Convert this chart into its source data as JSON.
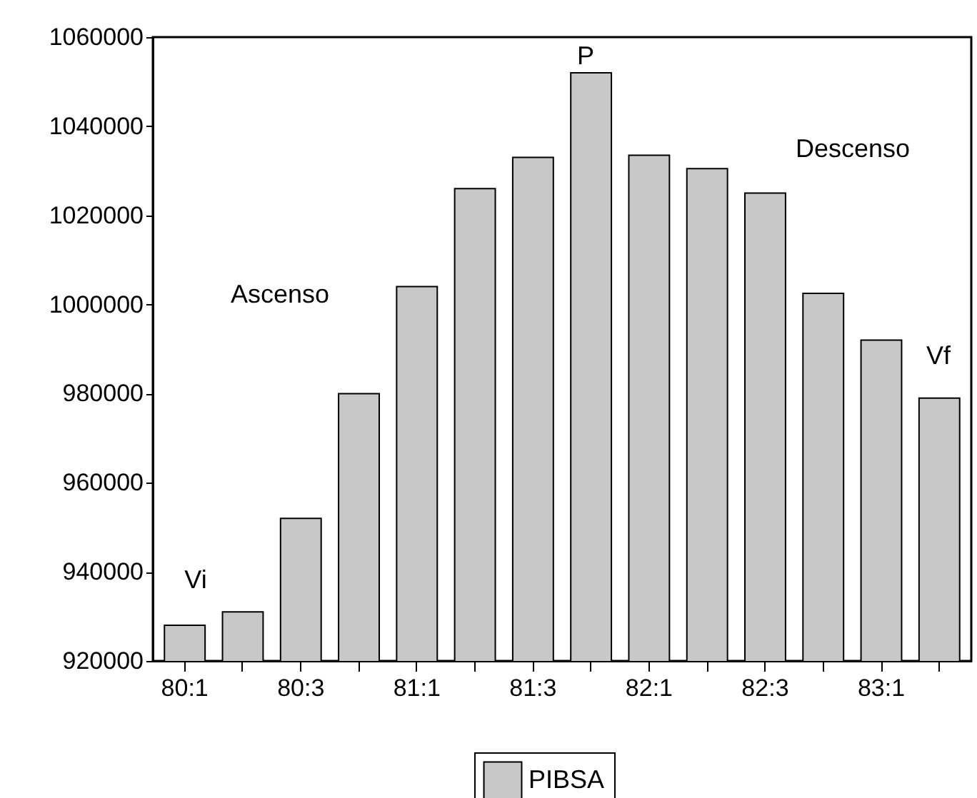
{
  "chart_data": {
    "type": "bar",
    "categories": [
      "80:1",
      null,
      "80:3",
      null,
      "81:1",
      null,
      "81:3",
      null,
      "82:1",
      null,
      "82:3",
      null,
      "83:1",
      null
    ],
    "series": [
      {
        "name": "PIBSA",
        "color": "#c8c8c8",
        "values": [
          928000,
          931000,
          952000,
          980000,
          1004000,
          1026000,
          1033000,
          1052000,
          1033500,
          1030500,
          1025000,
          1002500,
          992000,
          979000
        ]
      }
    ],
    "ylim": [
      920000,
      1060000
    ],
    "yticks": [
      920000,
      940000,
      960000,
      980000,
      1000000,
      1020000,
      1040000,
      1060000
    ],
    "annotations": [
      "Vi",
      "Ascenso",
      "P",
      "Descenso",
      "Vf"
    ],
    "grid": false,
    "legend": "bottom"
  }
}
